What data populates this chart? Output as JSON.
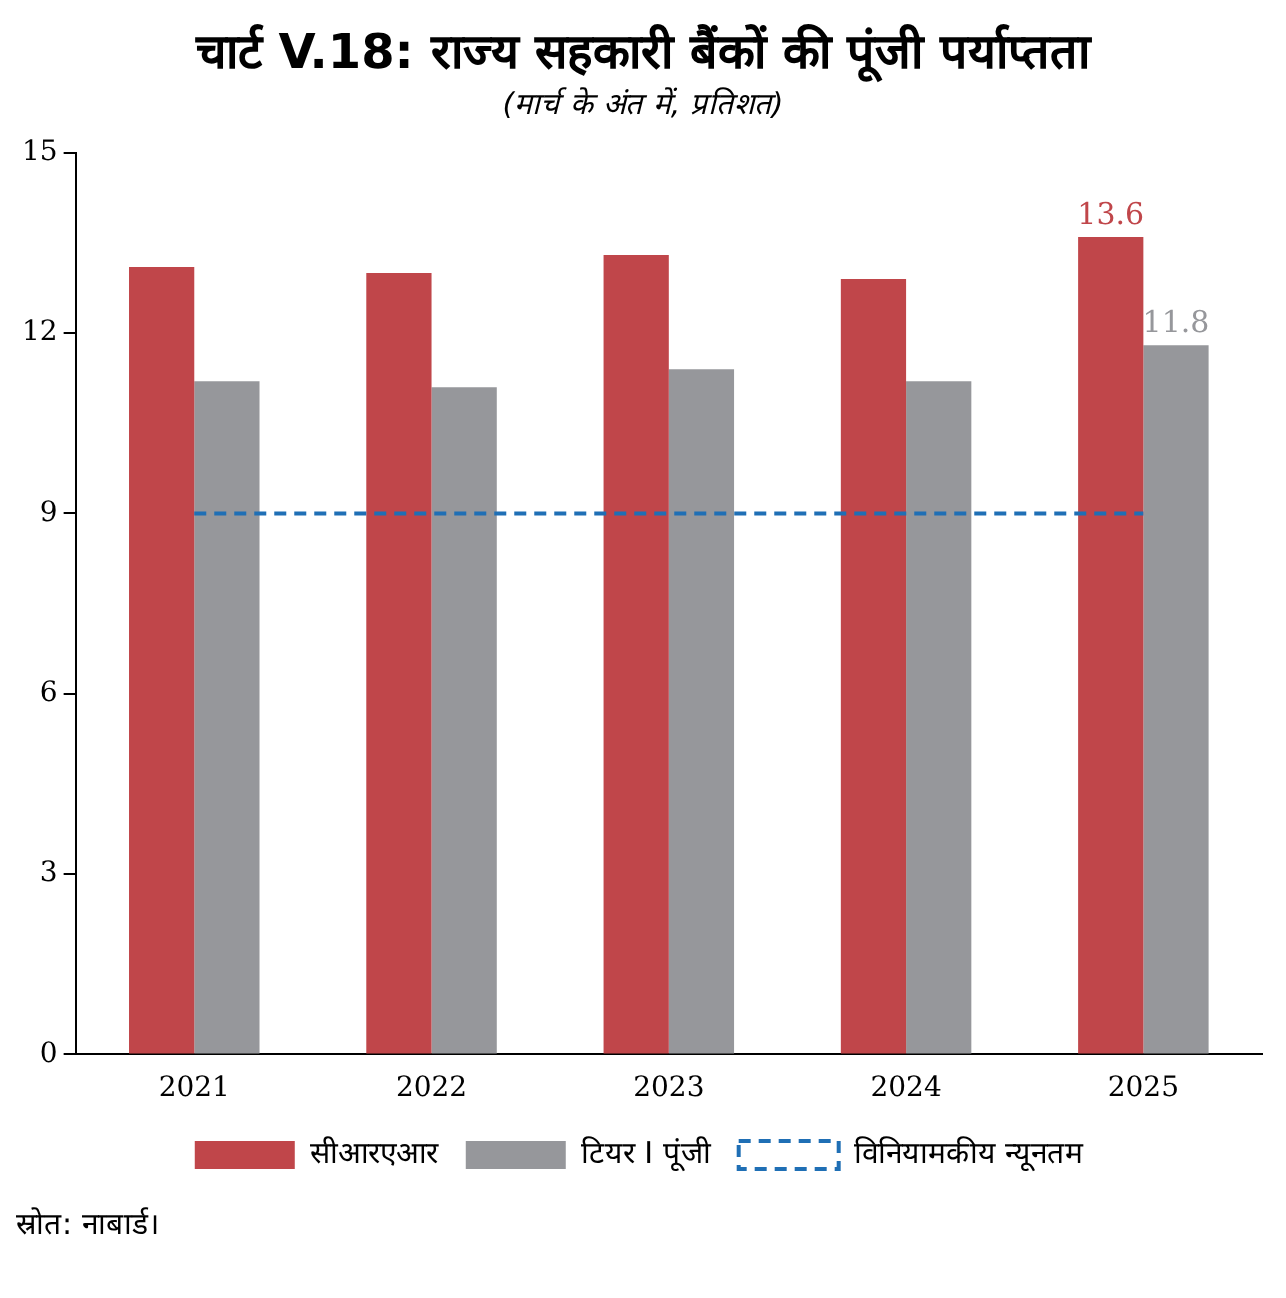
{
  "chart_data": {
    "type": "bar",
    "title": "चार्ट V.18: राज्य सहकारी बैंकों की पूंजी पर्याप्तता",
    "subtitle": "(मार्च के अंत में, प्रतिशत)",
    "categories": [
      "2021",
      "2022",
      "2023",
      "2024",
      "2025"
    ],
    "series": [
      {
        "name": "सीआरएआर",
        "color": "#c0464a",
        "values": [
          13.1,
          13.0,
          13.3,
          12.9,
          13.6
        ],
        "value_labels": [
          null,
          null,
          null,
          null,
          "13.6"
        ]
      },
      {
        "name": "टियर I पूंजी",
        "color": "#96979b",
        "values": [
          11.2,
          11.1,
          11.4,
          11.2,
          11.8
        ],
        "value_labels": [
          null,
          null,
          null,
          null,
          "11.8"
        ]
      }
    ],
    "ref_lines": [
      {
        "axis": "y",
        "value": 9,
        "label": "विनियामकीय न्यूनतम",
        "color": "#1f6fb5",
        "line_style": "dashed"
      }
    ],
    "ylim": [
      0,
      15
    ],
    "yticks": [
      0,
      3,
      6,
      9,
      12,
      15
    ],
    "grid": false,
    "legend": "bottom",
    "annotations": [
      "स्रोत: नाबार्ड।"
    ]
  }
}
